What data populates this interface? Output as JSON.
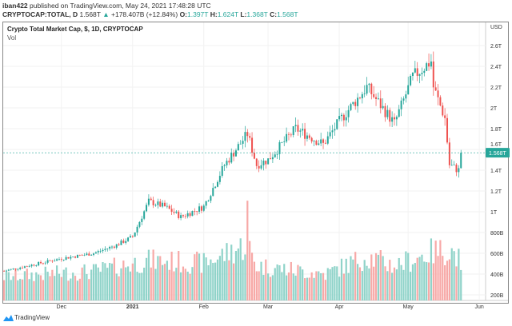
{
  "header": {
    "author": "iban422",
    "published": "published on TradingView.com, May 24, 2021 17:48:28 UTC",
    "symbol": "CRYPTOCAP:TOTAL, D",
    "last": "1.568T",
    "change": "+178.407B (+12.84%)",
    "o_label": "O:",
    "o": "1.397T",
    "h_label": "H:",
    "h": "1.624T",
    "l_label": "L:",
    "l": "1.368T",
    "c_label": "C:",
    "c": "1.568T"
  },
  "legend": {
    "title": "Crypto Total Market Cap, $, 1D, CRYPTOCAP",
    "vol": "Vol"
  },
  "footer": {
    "brand": "TradingView"
  },
  "colors": {
    "up": "#26a69a",
    "down": "#ef5350",
    "vol_up": "#8fd3c9",
    "vol_down": "#f7a9a7"
  },
  "chart_data": {
    "type": "candlestick",
    "title": "Crypto Total Market Cap, $, 1D, CRYPTOCAP",
    "currency": "USD",
    "current_price_label": "1.568T",
    "y_ticks": [
      "2.6T",
      "2.4T",
      "2.2T",
      "2T",
      "1.8T",
      "1.6T",
      "1.4T",
      "1.2T",
      "1T",
      "800B",
      "600B",
      "400B",
      "200B"
    ],
    "y_tick_values": [
      2.6,
      2.4,
      2.2,
      2.0,
      1.8,
      1.6,
      1.4,
      1.2,
      1.0,
      0.8,
      0.6,
      0.4,
      0.2
    ],
    "ylim": [
      0.18,
      2.83
    ],
    "x_ticks": [
      "Dec",
      "2021",
      "Feb",
      "Mar",
      "Apr",
      "May",
      "Jun"
    ],
    "x_tick_days": [
      25,
      56,
      87,
      115,
      146,
      176,
      207
    ],
    "days": 200,
    "close_keypoints_day_T": [
      [
        0,
        0.43
      ],
      [
        25,
        0.55
      ],
      [
        39,
        0.6
      ],
      [
        49,
        0.68
      ],
      [
        56,
        0.76
      ],
      [
        63,
        1.1
      ],
      [
        70,
        1.05
      ],
      [
        77,
        0.95
      ],
      [
        87,
        1.05
      ],
      [
        96,
        1.45
      ],
      [
        106,
        1.75
      ],
      [
        110,
        1.45
      ],
      [
        115,
        1.5
      ],
      [
        127,
        1.8
      ],
      [
        139,
        1.65
      ],
      [
        147,
        1.9
      ],
      [
        158,
        2.2
      ],
      [
        170,
        1.85
      ],
      [
        178,
        2.3
      ],
      [
        186,
        2.45
      ],
      [
        187,
        2.2
      ],
      [
        192,
        1.9
      ],
      [
        194,
        1.45
      ],
      [
        198,
        1.4
      ],
      [
        199,
        1.568
      ]
    ],
    "volume_keypoints_day_B": [
      [
        0,
        180
      ],
      [
        40,
        220
      ],
      [
        63,
        300
      ],
      [
        87,
        280
      ],
      [
        106,
        420
      ],
      [
        110,
        260
      ],
      [
        140,
        200
      ],
      [
        158,
        330
      ],
      [
        170,
        260
      ],
      [
        186,
        360
      ],
      [
        194,
        380
      ],
      [
        199,
        300
      ]
    ],
    "volume_max_B": 600
  }
}
